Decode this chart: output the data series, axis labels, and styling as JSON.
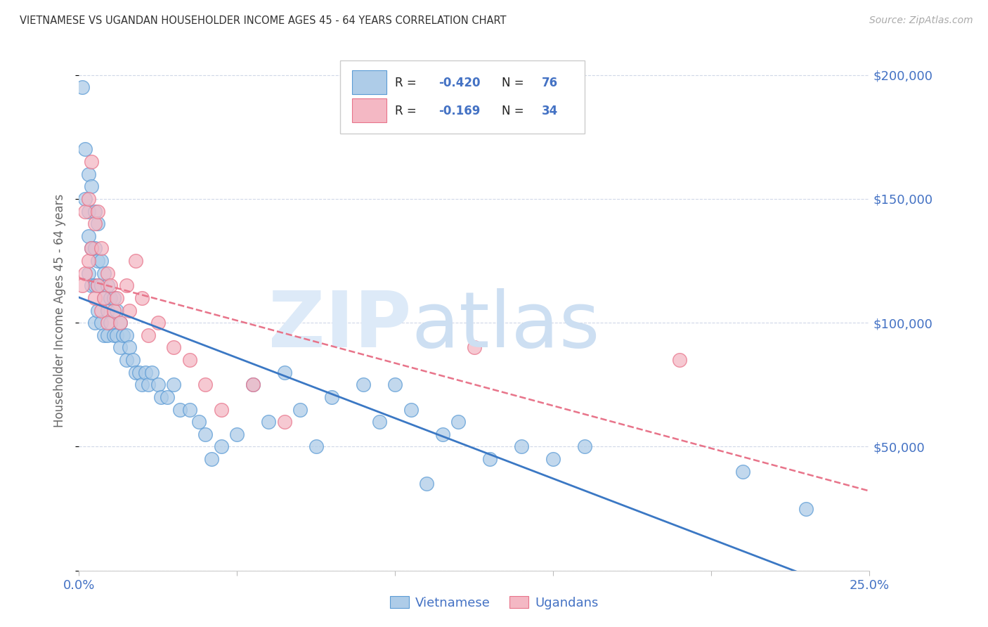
{
  "title": "VIETNAMESE VS UGANDAN HOUSEHOLDER INCOME AGES 45 - 64 YEARS CORRELATION CHART",
  "source": "Source: ZipAtlas.com",
  "ylabel": "Householder Income Ages 45 - 64 years",
  "xlim": [
    0.0,
    0.25
  ],
  "ylim": [
    0,
    210000
  ],
  "blue_color": "#aecce8",
  "pink_color": "#f4b8c4",
  "blue_edge_color": "#5b9bd5",
  "pink_edge_color": "#e8738a",
  "blue_line_color": "#3b78c4",
  "pink_line_color": "#e8748a",
  "background_color": "#ffffff",
  "grid_color": "#d0d8e8",
  "tick_label_color": "#4472c4",
  "ylabel_color": "#666666",
  "title_color": "#333333",
  "source_color": "#aaaaaa",
  "watermark_zip_color": "#dde8f5",
  "watermark_atlas_color": "#c8dff0",
  "vietnamese_x": [
    0.001,
    0.002,
    0.002,
    0.003,
    0.003,
    0.003,
    0.003,
    0.004,
    0.004,
    0.004,
    0.005,
    0.005,
    0.005,
    0.005,
    0.006,
    0.006,
    0.006,
    0.006,
    0.007,
    0.007,
    0.007,
    0.008,
    0.008,
    0.008,
    0.009,
    0.009,
    0.009,
    0.01,
    0.01,
    0.011,
    0.011,
    0.012,
    0.012,
    0.013,
    0.013,
    0.014,
    0.015,
    0.015,
    0.016,
    0.017,
    0.018,
    0.019,
    0.02,
    0.021,
    0.022,
    0.023,
    0.025,
    0.026,
    0.028,
    0.03,
    0.032,
    0.035,
    0.038,
    0.04,
    0.042,
    0.045,
    0.05,
    0.055,
    0.06,
    0.065,
    0.07,
    0.075,
    0.08,
    0.09,
    0.095,
    0.1,
    0.105,
    0.11,
    0.115,
    0.12,
    0.13,
    0.14,
    0.15,
    0.16,
    0.21,
    0.23
  ],
  "vietnamese_y": [
    195000,
    170000,
    150000,
    160000,
    145000,
    135000,
    120000,
    155000,
    130000,
    115000,
    145000,
    130000,
    115000,
    100000,
    140000,
    125000,
    115000,
    105000,
    125000,
    115000,
    100000,
    120000,
    110000,
    95000,
    115000,
    105000,
    95000,
    110000,
    100000,
    110000,
    95000,
    105000,
    95000,
    100000,
    90000,
    95000,
    95000,
    85000,
    90000,
    85000,
    80000,
    80000,
    75000,
    80000,
    75000,
    80000,
    75000,
    70000,
    70000,
    75000,
    65000,
    65000,
    60000,
    55000,
    45000,
    50000,
    55000,
    75000,
    60000,
    80000,
    65000,
    50000,
    70000,
    75000,
    60000,
    75000,
    65000,
    35000,
    55000,
    60000,
    45000,
    50000,
    45000,
    50000,
    40000,
    25000
  ],
  "ugandan_x": [
    0.001,
    0.002,
    0.002,
    0.003,
    0.003,
    0.004,
    0.004,
    0.005,
    0.005,
    0.006,
    0.006,
    0.007,
    0.007,
    0.008,
    0.009,
    0.009,
    0.01,
    0.011,
    0.012,
    0.013,
    0.015,
    0.016,
    0.018,
    0.02,
    0.022,
    0.025,
    0.03,
    0.035,
    0.04,
    0.045,
    0.055,
    0.065,
    0.125,
    0.19
  ],
  "ugandan_y": [
    115000,
    145000,
    120000,
    150000,
    125000,
    165000,
    130000,
    140000,
    110000,
    145000,
    115000,
    130000,
    105000,
    110000,
    120000,
    100000,
    115000,
    105000,
    110000,
    100000,
    115000,
    105000,
    125000,
    110000,
    95000,
    100000,
    90000,
    85000,
    75000,
    65000,
    75000,
    60000,
    90000,
    85000
  ]
}
